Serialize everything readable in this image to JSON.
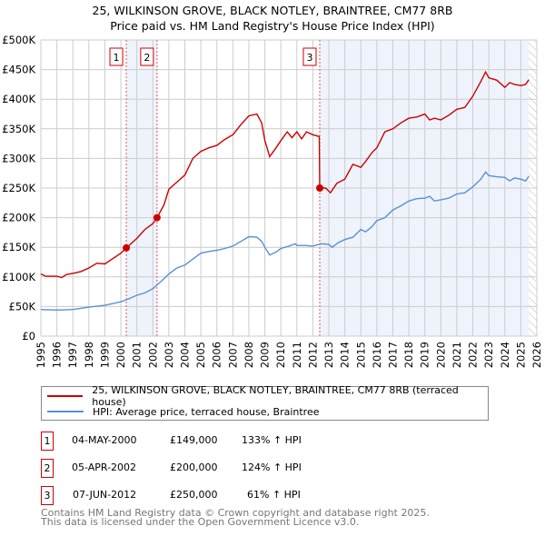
{
  "title": "25, WILKINSON GROVE, BLACK NOTLEY, BRAINTREE, CM77 8RB",
  "subtitle": "Price paid vs. HM Land Registry's House Price Index (HPI)",
  "legend": [
    {
      "label": "25, WILKINSON GROVE, BLACK NOTLEY, BRAINTREE, CM77 8RB (terraced house)",
      "color": "#cc0000"
    },
    {
      "label": "HPI: Average price, terraced house, Braintree",
      "color": "#5b8fd4"
    }
  ],
  "sales": [
    {
      "num": "1",
      "date": "04-MAY-2000",
      "price": "£149,000",
      "hpi": "133% ↑ HPI"
    },
    {
      "num": "2",
      "date": "05-APR-2002",
      "price": "£200,000",
      "hpi": "124% ↑ HPI"
    },
    {
      "num": "3",
      "date": "07-JUN-2012",
      "price": "£250,000",
      "hpi": "61% ↑ HPI"
    }
  ],
  "footer": [
    "Contains HM Land Registry data © Crown copyright and database right 2025.",
    "This data is licensed under the Open Government Licence v3.0."
  ],
  "chart_data": {
    "type": "line",
    "xlim": [
      1995,
      2026
    ],
    "ylim": [
      0,
      500000
    ],
    "yticks": [
      0,
      50000,
      100000,
      150000,
      200000,
      250000,
      300000,
      350000,
      400000,
      450000,
      500000
    ],
    "ytick_labels": [
      "£0",
      "£50K",
      "£100K",
      "£150K",
      "£200K",
      "£250K",
      "£300K",
      "£350K",
      "£400K",
      "£450K",
      "£500K"
    ],
    "xticks": [
      1995,
      1996,
      1997,
      1998,
      1999,
      2000,
      2001,
      2002,
      2003,
      2004,
      2005,
      2006,
      2007,
      2008,
      2009,
      2010,
      2011,
      2012,
      2013,
      2014,
      2015,
      2016,
      2017,
      2018,
      2019,
      2020,
      2021,
      2022,
      2023,
      2024,
      2025,
      2026
    ],
    "grid": true,
    "shaded_ranges": [
      [
        2000.34,
        2002.26
      ],
      [
        2012.43,
        2025.5
      ]
    ],
    "forecast_hatch_from": 2025.5,
    "sale_markers": [
      {
        "label": "1",
        "x": 2000.34,
        "y": 149000
      },
      {
        "label": "2",
        "x": 2002.26,
        "y": 200000
      },
      {
        "label": "3",
        "x": 2012.43,
        "y": 250000
      }
    ],
    "series": [
      {
        "name": "25, WILKINSON GROVE, BLACK NOTLEY, BRAINTREE, CM77 8RB (terraced house)",
        "color": "#cc0000",
        "x": [
          1995,
          1995.3,
          1996,
          1996.3,
          1996.6,
          1997,
          1997.5,
          1998,
          1998.5,
          1999,
          1999.5,
          2000,
          2000.34,
          2001,
          2001.5,
          2002,
          2002.26,
          2002.7,
          2003,
          2003.5,
          2004,
          2004.5,
          2005,
          2005.5,
          2006,
          2006.5,
          2007,
          2007.5,
          2008,
          2008.5,
          2008.8,
          2009,
          2009.3,
          2009.7,
          2010,
          2010.4,
          2010.7,
          2011,
          2011.3,
          2011.6,
          2012,
          2012.4,
          2012.43,
          2012.8,
          2013.1,
          2013.5,
          2014,
          2014.5,
          2015,
          2015.3,
          2015.7,
          2016,
          2016.5,
          2017,
          2017.5,
          2018,
          2018.5,
          2019,
          2019.3,
          2019.6,
          2020,
          2020.5,
          2021,
          2021.5,
          2022,
          2022.5,
          2022.8,
          2023,
          2023.5,
          2024,
          2024.3,
          2024.6,
          2025,
          2025.3,
          2025.5
        ],
        "y": [
          105000,
          101000,
          101000,
          99000,
          104000,
          106000,
          109000,
          115000,
          123000,
          122000,
          131000,
          140000,
          149000,
          165000,
          180000,
          190000,
          200000,
          222000,
          248000,
          260000,
          272000,
          300000,
          312000,
          318000,
          322000,
          332000,
          340000,
          357000,
          372000,
          375000,
          360000,
          330000,
          303000,
          318000,
          330000,
          345000,
          335000,
          345000,
          333000,
          345000,
          340000,
          337000,
          250000,
          250000,
          242000,
          258000,
          265000,
          290000,
          285000,
          295000,
          310000,
          318000,
          345000,
          350000,
          360000,
          368000,
          370000,
          375000,
          365000,
          368000,
          365000,
          373000,
          383000,
          386000,
          405000,
          430000,
          446000,
          436000,
          432000,
          420000,
          428000,
          425000,
          423000,
          425000,
          433000
        ]
      },
      {
        "name": "HPI: Average price, terraced house, Braintree",
        "color": "#5b8fd4",
        "x": [
          1995,
          1996,
          1997,
          1998,
          1999,
          2000,
          2000.5,
          2001,
          2001.5,
          2002,
          2002.5,
          2003,
          2003.5,
          2004,
          2004.5,
          2005,
          2005.5,
          2006,
          2006.5,
          2007,
          2007.5,
          2008,
          2008.5,
          2008.8,
          2009,
          2009.3,
          2009.7,
          2010,
          2010.5,
          2010.9,
          2011,
          2011.5,
          2012,
          2012.5,
          2013,
          2013.2,
          2013.6,
          2014,
          2014.5,
          2015,
          2015.3,
          2015.7,
          2016,
          2016.5,
          2017,
          2017.5,
          2018,
          2018.5,
          2019,
          2019.3,
          2019.6,
          2020,
          2020.5,
          2021,
          2021.5,
          2022,
          2022.5,
          2022.8,
          2023,
          2023.5,
          2024,
          2024.3,
          2024.6,
          2025,
          2025.3,
          2025.5
        ],
        "y": [
          45000,
          44000,
          45000,
          49000,
          52000,
          58000,
          63000,
          69000,
          73000,
          80000,
          92000,
          105000,
          115000,
          120000,
          130000,
          140000,
          143000,
          145000,
          148000,
          152000,
          160000,
          168000,
          167000,
          160000,
          150000,
          137000,
          142000,
          148000,
          152000,
          156000,
          153000,
          153000,
          152000,
          156000,
          155000,
          150000,
          158000,
          163000,
          167000,
          180000,
          176000,
          185000,
          195000,
          200000,
          213000,
          220000,
          228000,
          232000,
          233000,
          236000,
          228000,
          230000,
          233000,
          240000,
          242000,
          252000,
          265000,
          277000,
          271000,
          269000,
          268000,
          262000,
          267000,
          265000,
          262000,
          270000
        ]
      }
    ]
  }
}
